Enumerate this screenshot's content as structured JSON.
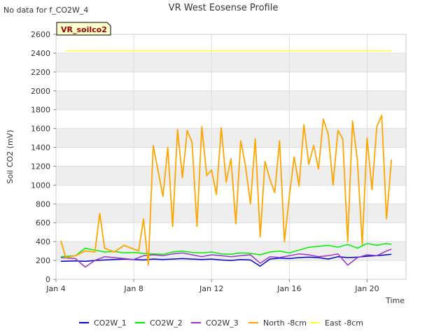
{
  "corner_note": "No data for f_CO2W_4",
  "site_label": "VR_soilco2",
  "colors": {
    "CO2W_1": "#0000cc",
    "CO2W_2": "#00ee00",
    "CO2W_3": "#9933cc",
    "North -8cm": "#ffa500",
    "East -8cm": "#ffff33",
    "band": "#eeeeee",
    "site_label_bg": "#ffffcc",
    "site_label_text": "#990000"
  },
  "chart_data": {
    "type": "line",
    "title": "VR West Eosense Profile",
    "xlabel": "Time",
    "ylabel": "Soil CO2 (mV)",
    "xlim": [
      "2024-01-04",
      "2024-01-22"
    ],
    "ylim": [
      0,
      2600
    ],
    "x_ticks": [
      "Jan 4",
      "Jan 8",
      "Jan 12",
      "Jan 16",
      "Jan 20"
    ],
    "y_ticks": [
      0,
      200,
      400,
      600,
      800,
      1000,
      1200,
      1400,
      1600,
      1800,
      2000,
      2200,
      2400,
      2600
    ],
    "grid": true,
    "legend_position": "bottom",
    "series": [
      {
        "name": "CO2W_1",
        "x": [
          "2024-01-04 06:00",
          "2024-01-05 00:00",
          "2024-01-05 12:00",
          "2024-01-06 00:00",
          "2024-01-06 12:00",
          "2024-01-07 00:00",
          "2024-01-07 12:00",
          "2024-01-08 00:00",
          "2024-01-08 12:00",
          "2024-01-09 00:00",
          "2024-01-09 12:00",
          "2024-01-10 00:00",
          "2024-01-10 12:00",
          "2024-01-11 00:00",
          "2024-01-11 12:00",
          "2024-01-12 00:00",
          "2024-01-12 12:00",
          "2024-01-13 00:00",
          "2024-01-13 12:00",
          "2024-01-14 00:00",
          "2024-01-14 12:00",
          "2024-01-15 00:00",
          "2024-01-15 12:00",
          "2024-01-16 00:00",
          "2024-01-16 12:00",
          "2024-01-17 00:00",
          "2024-01-17 12:00",
          "2024-01-18 00:00",
          "2024-01-18 12:00",
          "2024-01-19 00:00",
          "2024-01-19 12:00",
          "2024-01-20 00:00",
          "2024-01-20 12:00",
          "2024-01-21 00:00",
          "2024-01-21 06:00"
        ],
        "y": [
          190,
          195,
          190,
          200,
          205,
          210,
          215,
          210,
          205,
          215,
          210,
          215,
          220,
          215,
          210,
          215,
          205,
          200,
          210,
          205,
          140,
          215,
          225,
          220,
          230,
          235,
          230,
          215,
          240,
          230,
          235,
          245,
          250,
          260,
          265
        ]
      },
      {
        "name": "CO2W_2",
        "x": [
          "2024-01-04 06:00",
          "2024-01-05 00:00",
          "2024-01-05 12:00",
          "2024-01-06 00:00",
          "2024-01-06 12:00",
          "2024-01-07 00:00",
          "2024-01-07 12:00",
          "2024-01-08 00:00",
          "2024-01-08 12:00",
          "2024-01-09 00:00",
          "2024-01-09 12:00",
          "2024-01-10 00:00",
          "2024-01-10 12:00",
          "2024-01-11 00:00",
          "2024-01-11 12:00",
          "2024-01-12 00:00",
          "2024-01-12 12:00",
          "2024-01-13 00:00",
          "2024-01-13 12:00",
          "2024-01-14 00:00",
          "2024-01-14 12:00",
          "2024-01-15 00:00",
          "2024-01-15 12:00",
          "2024-01-16 00:00",
          "2024-01-16 12:00",
          "2024-01-17 00:00",
          "2024-01-17 12:00",
          "2024-01-18 00:00",
          "2024-01-18 12:00",
          "2024-01-19 00:00",
          "2024-01-19 12:00",
          "2024-01-20 00:00",
          "2024-01-20 12:00",
          "2024-01-21 00:00",
          "2024-01-21 06:00"
        ],
        "y": [
          240,
          250,
          330,
          310,
          290,
          295,
          280,
          285,
          275,
          270,
          265,
          290,
          300,
          285,
          280,
          290,
          270,
          265,
          280,
          275,
          260,
          290,
          300,
          280,
          310,
          340,
          350,
          360,
          340,
          370,
          330,
          380,
          360,
          380,
          370
        ]
      },
      {
        "name": "CO2W_3",
        "x": [
          "2024-01-04 06:00",
          "2024-01-05 00:00",
          "2024-01-05 12:00",
          "2024-01-06 00:00",
          "2024-01-06 12:00",
          "2024-01-07 00:00",
          "2024-01-07 12:00",
          "2024-01-08 00:00",
          "2024-01-08 12:00",
          "2024-01-09 00:00",
          "2024-01-09 12:00",
          "2024-01-10 00:00",
          "2024-01-10 12:00",
          "2024-01-11 00:00",
          "2024-01-11 12:00",
          "2024-01-12 00:00",
          "2024-01-12 12:00",
          "2024-01-13 00:00",
          "2024-01-13 12:00",
          "2024-01-14 00:00",
          "2024-01-14 12:00",
          "2024-01-15 00:00",
          "2024-01-15 12:00",
          "2024-01-16 00:00",
          "2024-01-16 12:00",
          "2024-01-17 00:00",
          "2024-01-17 12:00",
          "2024-01-18 00:00",
          "2024-01-18 12:00",
          "2024-01-19 00:00",
          "2024-01-19 12:00",
          "2024-01-20 00:00",
          "2024-01-20 12:00",
          "2024-01-21 00:00",
          "2024-01-21 06:00"
        ],
        "y": [
          230,
          220,
          130,
          200,
          240,
          230,
          220,
          210,
          250,
          260,
          250,
          270,
          280,
          260,
          240,
          260,
          250,
          240,
          250,
          260,
          170,
          240,
          230,
          250,
          270,
          260,
          240,
          250,
          270,
          150,
          230,
          260,
          250,
          300,
          320
        ]
      },
      {
        "name": "North -8cm",
        "x": [
          "2024-01-04 06:00",
          "2024-01-04 12:00",
          "2024-01-05 00:00",
          "2024-01-05 12:00",
          "2024-01-06 00:00",
          "2024-01-06 06:00",
          "2024-01-06 12:00",
          "2024-01-07 00:00",
          "2024-01-07 12:00",
          "2024-01-08 00:00",
          "2024-01-08 06:00",
          "2024-01-08 12:00",
          "2024-01-08 18:00",
          "2024-01-09 00:00",
          "2024-01-09 06:00",
          "2024-01-09 12:00",
          "2024-01-09 18:00",
          "2024-01-10 00:00",
          "2024-01-10 06:00",
          "2024-01-10 12:00",
          "2024-01-10 18:00",
          "2024-01-11 00:00",
          "2024-01-11 06:00",
          "2024-01-11 12:00",
          "2024-01-11 18:00",
          "2024-01-12 00:00",
          "2024-01-12 06:00",
          "2024-01-12 12:00",
          "2024-01-12 18:00",
          "2024-01-13 00:00",
          "2024-01-13 06:00",
          "2024-01-13 12:00",
          "2024-01-13 18:00",
          "2024-01-14 00:00",
          "2024-01-14 06:00",
          "2024-01-14 12:00",
          "2024-01-14 18:00",
          "2024-01-15 00:00",
          "2024-01-15 06:00",
          "2024-01-15 12:00",
          "2024-01-15 18:00",
          "2024-01-16 00:00",
          "2024-01-16 06:00",
          "2024-01-16 12:00",
          "2024-01-16 18:00",
          "2024-01-17 00:00",
          "2024-01-17 06:00",
          "2024-01-17 12:00",
          "2024-01-17 18:00",
          "2024-01-18 00:00",
          "2024-01-18 06:00",
          "2024-01-18 12:00",
          "2024-01-18 18:00",
          "2024-01-19 00:00",
          "2024-01-19 06:00",
          "2024-01-19 12:00",
          "2024-01-19 18:00",
          "2024-01-20 00:00",
          "2024-01-20 06:00",
          "2024-01-20 12:00",
          "2024-01-20 18:00",
          "2024-01-21 00:00",
          "2024-01-21 06:00"
        ],
        "y": [
          410,
          230,
          250,
          300,
          290,
          700,
          330,
          290,
          360,
          320,
          300,
          640,
          150,
          1420,
          1150,
          880,
          1400,
          560,
          1590,
          1080,
          1580,
          1450,
          560,
          1620,
          1100,
          1160,
          900,
          1610,
          1030,
          1280,
          590,
          1470,
          1200,
          800,
          1490,
          450,
          1250,
          1060,
          920,
          1470,
          400,
          880,
          1300,
          990,
          1640,
          1220,
          1420,
          1170,
          1700,
          1540,
          1000,
          1580,
          1490,
          400,
          1680,
          1260,
          370,
          1500,
          950,
          1620,
          1740,
          640,
          1270
        ]
      },
      {
        "name": "East -8cm",
        "x": [
          "2024-01-04 12:00",
          "2024-01-21 06:00"
        ],
        "y": [
          2425,
          2425
        ]
      }
    ]
  }
}
